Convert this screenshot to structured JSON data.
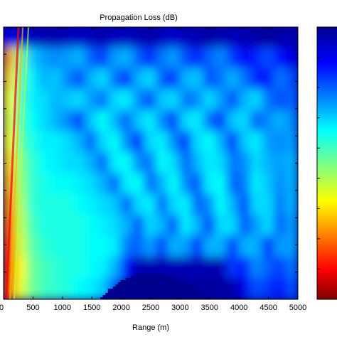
{
  "chart_data": {
    "type": "heatmap",
    "title": "Propagation  Loss (dB)",
    "xlabel": "Range (m)",
    "ylabel": "",
    "x_ticks": [
      0,
      500,
      1000,
      1500,
      2000,
      2500,
      3000,
      3500,
      4000,
      4500,
      5000
    ],
    "x_tick_labels": [
      "0",
      "500",
      "1000",
      "1500",
      "2000",
      "2500",
      "3000",
      "3500",
      "4000",
      "4500",
      "5000"
    ],
    "xlim": [
      0,
      5000
    ],
    "colormap": "jet",
    "colorbar": true,
    "seamount": {
      "description": "bathymetry bump",
      "x_range": [
        1600,
        3500
      ],
      "peak_x": 2450
    },
    "field_rows": [
      [
        0.1,
        0.08,
        0.06,
        0.05,
        0.05,
        0.06,
        0.07,
        0.06,
        0.05,
        0.06,
        0.07,
        0.05,
        0.04,
        0.06,
        0.08,
        0.06,
        0.05,
        0.04,
        0.05,
        0.06,
        0.05,
        0.04,
        0.03,
        0.04,
        0.05
      ],
      [
        0.72,
        0.48,
        0.32,
        0.28,
        0.26,
        0.28,
        0.3,
        0.22,
        0.18,
        0.28,
        0.3,
        0.22,
        0.16,
        0.24,
        0.28,
        0.2,
        0.15,
        0.22,
        0.26,
        0.18,
        0.12,
        0.16,
        0.2,
        0.14,
        0.1
      ],
      [
        0.66,
        0.46,
        0.36,
        0.3,
        0.32,
        0.26,
        0.2,
        0.3,
        0.34,
        0.24,
        0.18,
        0.3,
        0.34,
        0.22,
        0.18,
        0.3,
        0.32,
        0.2,
        0.24,
        0.3,
        0.24,
        0.16,
        0.14,
        0.24,
        0.2
      ],
      [
        0.62,
        0.44,
        0.36,
        0.34,
        0.3,
        0.32,
        0.34,
        0.28,
        0.24,
        0.34,
        0.36,
        0.26,
        0.2,
        0.32,
        0.34,
        0.24,
        0.26,
        0.34,
        0.28,
        0.2,
        0.3,
        0.34,
        0.24,
        0.2,
        0.22
      ],
      [
        0.6,
        0.44,
        0.38,
        0.34,
        0.3,
        0.26,
        0.18,
        0.32,
        0.38,
        0.3,
        0.22,
        0.32,
        0.36,
        0.26,
        0.18,
        0.34,
        0.36,
        0.24,
        0.18,
        0.32,
        0.34,
        0.22,
        0.26,
        0.3,
        0.26
      ],
      [
        0.62,
        0.46,
        0.4,
        0.36,
        0.36,
        0.34,
        0.3,
        0.22,
        0.34,
        0.38,
        0.26,
        0.16,
        0.34,
        0.36,
        0.26,
        0.16,
        0.34,
        0.38,
        0.3,
        0.16,
        0.32,
        0.36,
        0.28,
        0.26,
        0.28
      ],
      [
        0.66,
        0.5,
        0.42,
        0.38,
        0.36,
        0.34,
        0.34,
        0.3,
        0.22,
        0.36,
        0.38,
        0.26,
        0.24,
        0.38,
        0.34,
        0.22,
        0.3,
        0.36,
        0.34,
        0.24,
        0.26,
        0.34,
        0.3,
        0.28,
        0.3
      ],
      [
        0.7,
        0.52,
        0.42,
        0.4,
        0.38,
        0.38,
        0.36,
        0.34,
        0.3,
        0.22,
        0.36,
        0.38,
        0.22,
        0.3,
        0.38,
        0.26,
        0.2,
        0.36,
        0.38,
        0.22,
        0.24,
        0.36,
        0.32,
        0.26,
        0.3
      ],
      [
        0.74,
        0.54,
        0.42,
        0.4,
        0.4,
        0.4,
        0.38,
        0.36,
        0.34,
        0.32,
        0.22,
        0.34,
        0.36,
        0.22,
        0.34,
        0.36,
        0.22,
        0.26,
        0.38,
        0.3,
        0.18,
        0.34,
        0.34,
        0.24,
        0.3
      ],
      [
        0.78,
        0.56,
        0.44,
        0.4,
        0.4,
        0.4,
        0.4,
        0.38,
        0.36,
        0.34,
        0.3,
        0.2,
        0.34,
        0.3,
        0.2,
        0.36,
        0.3,
        0.18,
        0.34,
        0.34,
        0.2,
        0.28,
        0.34,
        0.22,
        0.28
      ],
      [
        0.82,
        0.58,
        0.46,
        0.42,
        0.4,
        0.4,
        0.4,
        0.38,
        0.38,
        0.36,
        0.24,
        0.22,
        0.28,
        0.18,
        0.3,
        0.28,
        0.16,
        0.3,
        0.3,
        0.16,
        0.3,
        0.3,
        0.16,
        0.28,
        0.28
      ],
      [
        0.86,
        0.62,
        0.48,
        0.44,
        0.42,
        0.4,
        0.4,
        0.38,
        0.36,
        0.3,
        0.14,
        0.05,
        0.05,
        0.05,
        0.05,
        0.05,
        0.05,
        0.05,
        0.05,
        0.18,
        0.14,
        0.26,
        0.22,
        0.18,
        0.24
      ],
      [
        0.82,
        0.6,
        0.48,
        0.44,
        0.42,
        0.4,
        0.38,
        0.36,
        0.32,
        0.2,
        0.04,
        0.03,
        0.03,
        0.03,
        0.03,
        0.03,
        0.03,
        0.03,
        0.03,
        0.04,
        0.1,
        0.2,
        0.18,
        0.14,
        0.2
      ]
    ]
  }
}
